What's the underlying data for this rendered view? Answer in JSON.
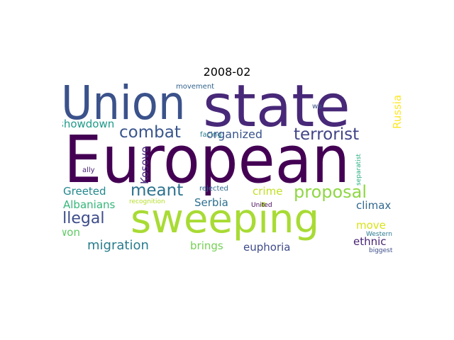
{
  "title": "2008-02",
  "words": [
    {
      "text": "European",
      "color": "#440154"
    },
    {
      "text": "state",
      "color": "#482878"
    },
    {
      "text": "Union",
      "color": "#3b528b"
    },
    {
      "text": "sweeping",
      "color": "#a8db34"
    },
    {
      "text": "combat",
      "color": "#39558c"
    },
    {
      "text": "meant",
      "color": "#2c728e"
    },
    {
      "text": "proposal",
      "color": "#8fd744"
    },
    {
      "text": "terrorist",
      "color": "#414487"
    },
    {
      "text": "organized",
      "color": "#3a548c"
    },
    {
      "text": "illegal",
      "color": "#3e4c8a"
    },
    {
      "text": "migration",
      "color": "#287c8e"
    },
    {
      "text": "showdown",
      "color": "#1f9a8a"
    },
    {
      "text": "Greeted",
      "color": "#23888e"
    },
    {
      "text": "Albanians",
      "color": "#35b779"
    },
    {
      "text": "Serbia",
      "color": "#2d708e"
    },
    {
      "text": "crime",
      "color": "#c2df23"
    },
    {
      "text": "climax",
      "color": "#31688e"
    },
    {
      "text": "move",
      "color": "#d8e219"
    },
    {
      "text": "won",
      "color": "#5ec962"
    },
    {
      "text": "brings",
      "color": "#75d054"
    },
    {
      "text": "euphoria",
      "color": "#3e4a89"
    },
    {
      "text": "ethnic",
      "color": "#482475"
    },
    {
      "text": "Kosovo",
      "color": "#472d7b"
    },
    {
      "text": "Russia",
      "color": "#fde725"
    },
    {
      "text": "movement",
      "color": "#33638d"
    },
    {
      "text": "wa",
      "color": "#3b528b"
    },
    {
      "text": "facing",
      "color": "#287d8e"
    },
    {
      "text": "separatist",
      "color": "#27ad81"
    },
    {
      "text": "ally",
      "color": "#482173"
    },
    {
      "text": "rejected",
      "color": "#31688e"
    },
    {
      "text": "recognition",
      "color": "#b5de2b"
    },
    {
      "text": "United",
      "color": "#450559"
    },
    {
      "text": "Western",
      "color": "#2a788e"
    },
    {
      "text": "biggest",
      "color": "#3e4c8a"
    }
  ]
}
